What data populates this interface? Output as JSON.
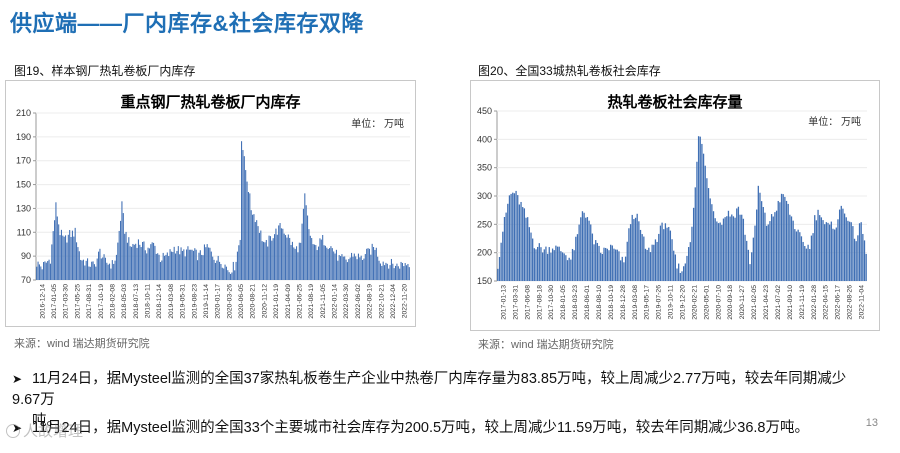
{
  "header": {
    "title": "供应端——厂内库存&社会库存双降"
  },
  "left": {
    "caption": "图19、样本钢厂热轧卷板厂内库存",
    "source": "来源：wind   瑞达期货研究院"
  },
  "right": {
    "caption": "图20、全国33城热轧卷板社会库存",
    "source": "来源：wind   瑞达期货研究院"
  },
  "bullets": [
    {
      "line1": "11月24日，据Mysteel监测的全国37家热轧板卷生产企业中热卷厂内库存量为83.85万吨，较上周减少2.77万吨，较去年同期减少9.67万",
      "line2": "吨。"
    },
    {
      "line1": "11月24日，据Mysteel监测的全国33个主要城市社会库存为200.5万吨，较上周减少11.59万吨，较去年同期减少36.8万吨。"
    }
  ],
  "page_number": "13",
  "watermark": {
    "text": "人故增理",
    "icon": "camera-icon"
  },
  "colors": {
    "bar": "#3f6fb4",
    "title": "#1f6fb5"
  },
  "chart_data": [
    {
      "type": "bar",
      "title": "重点钢厂热轧卷板厂内库存",
      "unit_label": "单位：  万吨",
      "ylim": [
        70,
        210
      ],
      "yticks": [
        70,
        90,
        110,
        130,
        150,
        170,
        190,
        210
      ],
      "start_date": "2016-12-14",
      "x_tick_labels": [
        "2016-12-14",
        "2017-01-05",
        "2017-03-30",
        "2017-05-25",
        "2017-08-31",
        "2017-10-19",
        "2018-02-08",
        "2018-05-03",
        "2018-07-13",
        "2018-10-11",
        "2018-12-14",
        "2019-03-08",
        "2019-05-31",
        "2019-08-23",
        "2019-11-14",
        "2020-01-17",
        "2020-03-26",
        "2020-06-05",
        "2020-08-21",
        "2020-11-12",
        "2021-01-19",
        "2021-04-09",
        "2021-06-25",
        "2021-08-19",
        "2021-11-05",
        "2022-01-14",
        "2022-03-30",
        "2022-06-02",
        "2022-08-19",
        "2022-10-21",
        "2022-12-04",
        "2022-11-20"
      ],
      "anchors": [
        [
          0,
          84
        ],
        [
          4,
          81
        ],
        [
          10,
          88
        ],
        [
          14,
          132
        ],
        [
          17,
          110
        ],
        [
          20,
          103
        ],
        [
          24,
          108
        ],
        [
          28,
          110
        ],
        [
          32,
          88
        ],
        [
          37,
          84
        ],
        [
          42,
          82
        ],
        [
          46,
          94
        ],
        [
          50,
          85
        ],
        [
          55,
          83
        ],
        [
          58,
          90
        ],
        [
          62,
          132
        ],
        [
          64,
          112
        ],
        [
          68,
          98
        ],
        [
          74,
          102
        ],
        [
          80,
          96
        ],
        [
          85,
          100
        ],
        [
          90,
          88
        ],
        [
          95,
          90
        ],
        [
          100,
          97
        ],
        [
          106,
          93
        ],
        [
          112,
          95
        ],
        [
          118,
          90
        ],
        [
          124,
          98
        ],
        [
          130,
          88
        ],
        [
          136,
          84
        ],
        [
          140,
          78
        ],
        [
          144,
          82
        ],
        [
          148,
          105
        ],
        [
          149,
          190
        ],
        [
          151,
          170
        ],
        [
          153,
          155
        ],
        [
          156,
          130
        ],
        [
          160,
          120
        ],
        [
          166,
          98
        ],
        [
          172,
          108
        ],
        [
          178,
          115
        ],
        [
          183,
          106
        ],
        [
          188,
          95
        ],
        [
          192,
          100
        ],
        [
          195,
          140
        ],
        [
          198,
          112
        ],
        [
          202,
          96
        ],
        [
          208,
          104
        ],
        [
          214,
          98
        ],
        [
          220,
          88
        ],
        [
          226,
          86
        ],
        [
          230,
          92
        ],
        [
          236,
          88
        ],
        [
          242,
          94
        ],
        [
          246,
          98
        ],
        [
          250,
          86
        ],
        [
          256,
          84
        ],
        [
          262,
          82
        ],
        [
          268,
          84
        ],
        [
          271,
          84
        ]
      ]
    },
    {
      "type": "bar",
      "title": "热轧卷板社会库存量",
      "unit_label": "单位：  万吨",
      "ylim": [
        150,
        450
      ],
      "yticks": [
        150,
        200,
        250,
        300,
        350,
        400,
        450
      ],
      "start_date": "2017-01-13",
      "x_tick_labels": [
        "2017-01-13",
        "2017-03-31",
        "2017-06-08",
        "2017-08-18",
        "2017-10-30",
        "2018-01-05",
        "2018-03-23",
        "2018-06-01",
        "2018-08-10",
        "2018-10-19",
        "2018-12-28",
        "2019-03-08",
        "2019-05-17",
        "2019-07-26",
        "2019-10-11",
        "2019-12-20",
        "2020-02-21",
        "2020-05-01",
        "2020-07-10",
        "2020-09-18",
        "2020-11-27",
        "2021-02-05",
        "2021-04-23",
        "2021-07-02",
        "2021-09-10",
        "2021-11-19",
        "2022-01-28",
        "2022-04-15",
        "2022-06-17",
        "2022-08-26",
        "2022-11-04"
      ],
      "anchors": [
        [
          0,
          180
        ],
        [
          3,
          240
        ],
        [
          7,
          300
        ],
        [
          10,
          307
        ],
        [
          14,
          285
        ],
        [
          18,
          255
        ],
        [
          22,
          215
        ],
        [
          28,
          205
        ],
        [
          34,
          210
        ],
        [
          40,
          200
        ],
        [
          44,
          188
        ],
        [
          48,
          230
        ],
        [
          51,
          275
        ],
        [
          54,
          265
        ],
        [
          58,
          220
        ],
        [
          62,
          200
        ],
        [
          68,
          210
        ],
        [
          72,
          200
        ],
        [
          76,
          180
        ],
        [
          80,
          255
        ],
        [
          83,
          270
        ],
        [
          86,
          240
        ],
        [
          90,
          200
        ],
        [
          94,
          215
        ],
        [
          98,
          240
        ],
        [
          101,
          255
        ],
        [
          104,
          230
        ],
        [
          108,
          175
        ],
        [
          112,
          170
        ],
        [
          116,
          225
        ],
        [
          119,
          310
        ],
        [
          121,
          405
        ],
        [
          123,
          395
        ],
        [
          126,
          330
        ],
        [
          130,
          275
        ],
        [
          134,
          250
        ],
        [
          138,
          270
        ],
        [
          142,
          265
        ],
        [
          145,
          280
        ],
        [
          148,
          255
        ],
        [
          152,
          185
        ],
        [
          155,
          240
        ],
        [
          157,
          315
        ],
        [
          159,
          290
        ],
        [
          162,
          250
        ],
        [
          166,
          265
        ],
        [
          170,
          295
        ],
        [
          173,
          300
        ],
        [
          176,
          270
        ],
        [
          180,
          240
        ],
        [
          184,
          215
        ],
        [
          188,
          210
        ],
        [
          191,
          260
        ],
        [
          194,
          275
        ],
        [
          197,
          250
        ],
        [
          200,
          245
        ],
        [
          204,
          250
        ],
        [
          207,
          280
        ],
        [
          210,
          270
        ],
        [
          213,
          245
        ],
        [
          216,
          225
        ],
        [
          219,
          252
        ],
        [
          222,
          200
        ]
      ]
    }
  ]
}
